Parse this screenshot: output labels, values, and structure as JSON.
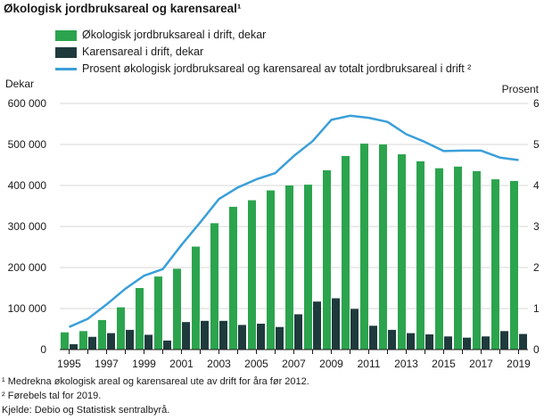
{
  "title": "Økologisk jordbruksareal og karensareal¹",
  "colors": {
    "green": "#2ca44e",
    "dark": "#1f3a3d",
    "line": "#3b9fd9",
    "grid": "#d7d7d7"
  },
  "notes": [
    "¹ Medrekna økologisk areal og karensareal ute av drift for åra før 2012.",
    "² Førebels tal for 2019.",
    "Kjelde: Debio og Statistisk sentralbyrå."
  ],
  "chart_data": {
    "type": "bar",
    "ylabel_left": "Dekar",
    "ylabel_right": "Prosent",
    "ylim_left": [
      0,
      600000
    ],
    "ylim_right": [
      0,
      6
    ],
    "yticks_left": [
      "0",
      "100 000",
      "200 000",
      "300 000",
      "400 000",
      "500 000",
      "600 000"
    ],
    "yticks_right": [
      "0",
      "1",
      "2",
      "3",
      "4",
      "5",
      "6"
    ],
    "categories": [
      "1995",
      "1996",
      "1997",
      "1998",
      "1999",
      "2000",
      "2001",
      "2002",
      "2003",
      "2004",
      "2005",
      "2006",
      "2007",
      "2008",
      "2009",
      "2010",
      "2011",
      "2012",
      "2013",
      "2014",
      "2015",
      "2016",
      "2017",
      "2018",
      "2019"
    ],
    "xtick_labels": [
      "1995",
      "1997",
      "1999",
      "2001",
      "2003",
      "2005",
      "2007",
      "2009",
      "2011",
      "2013",
      "2015",
      "2017",
      "2019"
    ],
    "series": [
      {
        "name": "Økologisk jordbruksareal i drift, dekar",
        "kind": "bar",
        "axis": "left",
        "values": [
          42000,
          45000,
          72000,
          103000,
          150000,
          178000,
          197000,
          251000,
          308000,
          348000,
          364000,
          388000,
          400000,
          402000,
          437000,
          472000,
          502000,
          500000,
          476000,
          459000,
          442000,
          446000,
          435000,
          415000,
          411000
        ]
      },
      {
        "name": "Karensareal i drift, dekar",
        "kind": "bar",
        "axis": "left",
        "values": [
          13000,
          31000,
          40000,
          48000,
          36000,
          22000,
          67000,
          70000,
          70000,
          60000,
          63000,
          55000,
          86000,
          117000,
          125000,
          99000,
          58000,
          48000,
          40000,
          37000,
          32000,
          29000,
          32000,
          45000,
          38000
        ]
      },
      {
        "name": "Prosent økologisk jordbruksareal og karensareal av totalt jordbruksareal i drift ²",
        "kind": "line",
        "axis": "right",
        "values": [
          0.55,
          0.75,
          1.1,
          1.48,
          1.8,
          1.96,
          2.55,
          3.1,
          3.67,
          3.95,
          4.15,
          4.3,
          4.72,
          5.08,
          5.6,
          5.7,
          5.65,
          5.55,
          5.25,
          5.06,
          4.84,
          4.85,
          4.85,
          4.68,
          4.62
        ]
      }
    ]
  }
}
